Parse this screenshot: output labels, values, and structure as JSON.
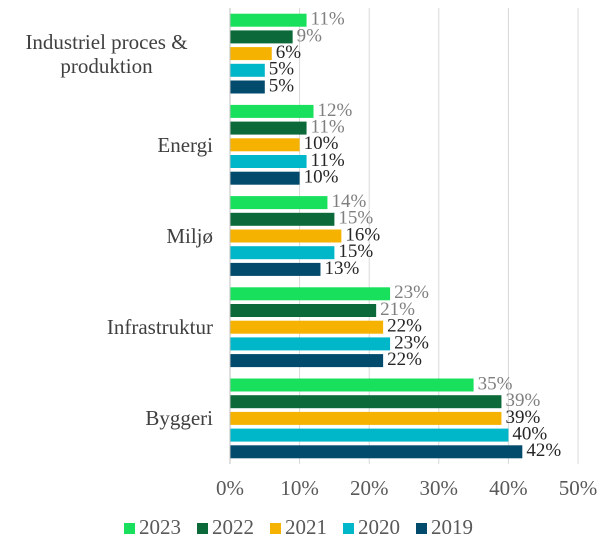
{
  "chart_data": {
    "type": "hbar",
    "categories": [
      "Industriel proces & produktion",
      "Energi",
      "Miljø",
      "Infrastruktur",
      "Byggeri"
    ],
    "series": [
      {
        "name": "2023",
        "color": "#18e05c",
        "values": [
          11,
          12,
          14,
          23,
          35
        ],
        "value_labels": [
          "11%",
          "12%",
          "14%",
          "23%",
          "35%"
        ]
      },
      {
        "name": "2022",
        "color": "#0c6a3a",
        "values": [
          9,
          11,
          15,
          21,
          39
        ],
        "value_labels": [
          "9%",
          "11%",
          "15%",
          "21%",
          "39%"
        ]
      },
      {
        "name": "2021",
        "color": "#f6b200",
        "values": [
          6,
          10,
          16,
          22,
          39
        ],
        "value_labels": [
          "6%",
          "10%",
          "16%",
          "22%",
          "39%"
        ]
      },
      {
        "name": "2020",
        "color": "#00b6c9",
        "values": [
          5,
          11,
          15,
          23,
          40
        ],
        "value_labels": [
          "5%",
          "11%",
          "15%",
          "23%",
          "40%"
        ]
      },
      {
        "name": "2019",
        "color": "#024b6c",
        "values": [
          5,
          10,
          13,
          22,
          42
        ],
        "value_labels": [
          "5%",
          "10%",
          "13%",
          "22%",
          "42%"
        ]
      }
    ],
    "xlim": [
      0,
      50
    ],
    "xticks": [
      {
        "value": 0,
        "label": "0%"
      },
      {
        "value": 10,
        "label": "10%"
      },
      {
        "value": 20,
        "label": "20%"
      },
      {
        "value": 30,
        "label": "30%"
      },
      {
        "value": 40,
        "label": "40%"
      },
      {
        "value": 50,
        "label": "50%"
      }
    ],
    "grid": true,
    "legend": "bottom"
  }
}
